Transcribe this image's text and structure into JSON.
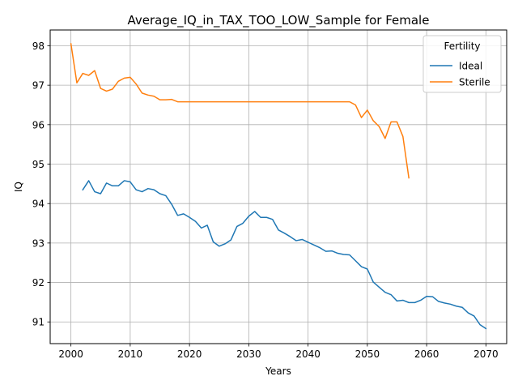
{
  "chart_data": {
    "type": "line",
    "title": "Average_IQ_in_TAX_TOO_LOW_Sample for Female",
    "xlabel": "Years",
    "ylabel": "IQ",
    "xlim": [
      1996.5,
      2073.5
    ],
    "ylim": [
      90.45,
      98.4
    ],
    "xticks": [
      2000,
      2010,
      2020,
      2030,
      2040,
      2050,
      2060,
      2070
    ],
    "yticks": [
      91,
      92,
      93,
      94,
      95,
      96,
      97,
      98
    ],
    "xtick_labels": [
      "2000",
      "2010",
      "2020",
      "2030",
      "2040",
      "2050",
      "2060",
      "2070"
    ],
    "ytick_labels": [
      "91",
      "92",
      "93",
      "94",
      "95",
      "96",
      "97",
      "98"
    ],
    "grid": true,
    "legend": {
      "title": "Fertility",
      "placement": "top-right"
    },
    "series": [
      {
        "name": "Ideal",
        "color": "#1f77b4",
        "x": [
          2002,
          2003,
          2004,
          2005,
          2006,
          2007,
          2008,
          2009,
          2010,
          2011,
          2012,
          2013,
          2014,
          2015,
          2016,
          2017,
          2018,
          2019,
          2020,
          2021,
          2022,
          2023,
          2024,
          2025,
          2026,
          2027,
          2028,
          2029,
          2030,
          2031,
          2032,
          2033,
          2034,
          2035,
          2036,
          2037,
          2038,
          2039,
          2040,
          2041,
          2042,
          2043,
          2044,
          2045,
          2046,
          2047,
          2048,
          2049,
          2050,
          2051,
          2052,
          2053,
          2054,
          2055,
          2056,
          2057,
          2058,
          2059,
          2060,
          2061,
          2062,
          2063,
          2064,
          2065,
          2066,
          2067,
          2068,
          2069,
          2070
        ],
        "values": [
          94.35,
          94.58,
          94.3,
          94.25,
          94.52,
          94.45,
          94.45,
          94.58,
          94.55,
          94.35,
          94.3,
          94.38,
          94.35,
          94.25,
          94.2,
          93.98,
          93.7,
          93.74,
          93.65,
          93.55,
          93.38,
          93.45,
          93.03,
          92.92,
          92.98,
          93.08,
          93.42,
          93.5,
          93.68,
          93.8,
          93.65,
          93.65,
          93.6,
          93.33,
          93.25,
          93.16,
          93.06,
          93.09,
          93.02,
          92.95,
          92.88,
          92.79,
          92.8,
          92.74,
          92.71,
          92.7,
          92.55,
          92.4,
          92.34,
          92.01,
          91.88,
          91.75,
          91.69,
          91.53,
          91.55,
          91.49,
          91.49,
          91.55,
          91.65,
          91.64,
          91.52,
          91.48,
          91.45,
          91.4,
          91.37,
          91.23,
          91.15,
          90.93,
          90.83
        ]
      },
      {
        "name": "Sterile",
        "color": "#ff7f0e",
        "x": [
          2000,
          2001,
          2002,
          2003,
          2004,
          2005,
          2006,
          2007,
          2008,
          2009,
          2010,
          2011,
          2012,
          2013,
          2014,
          2015,
          2016,
          2017,
          2018,
          2019,
          2020,
          2021,
          2022,
          2023,
          2024,
          2025,
          2026,
          2027,
          2028,
          2029,
          2030,
          2031,
          2032,
          2033,
          2034,
          2035,
          2036,
          2037,
          2038,
          2039,
          2040,
          2041,
          2042,
          2043,
          2044,
          2045,
          2046,
          2047,
          2048,
          2049,
          2050,
          2051,
          2052,
          2053,
          2054,
          2055,
          2056,
          2057
        ],
        "values": [
          98.05,
          97.06,
          97.3,
          97.25,
          97.37,
          96.92,
          96.85,
          96.9,
          97.1,
          97.18,
          97.2,
          97.03,
          96.8,
          96.75,
          96.72,
          96.63,
          96.63,
          96.64,
          96.58,
          96.58,
          96.58,
          96.58,
          96.58,
          96.58,
          96.58,
          96.58,
          96.58,
          96.58,
          96.58,
          96.58,
          96.58,
          96.58,
          96.58,
          96.58,
          96.58,
          96.58,
          96.58,
          96.58,
          96.58,
          96.58,
          96.58,
          96.58,
          96.58,
          96.58,
          96.58,
          96.58,
          96.58,
          96.58,
          96.5,
          96.18,
          96.37,
          96.1,
          95.95,
          95.65,
          96.07,
          96.07,
          95.7,
          94.65
        ]
      }
    ]
  }
}
